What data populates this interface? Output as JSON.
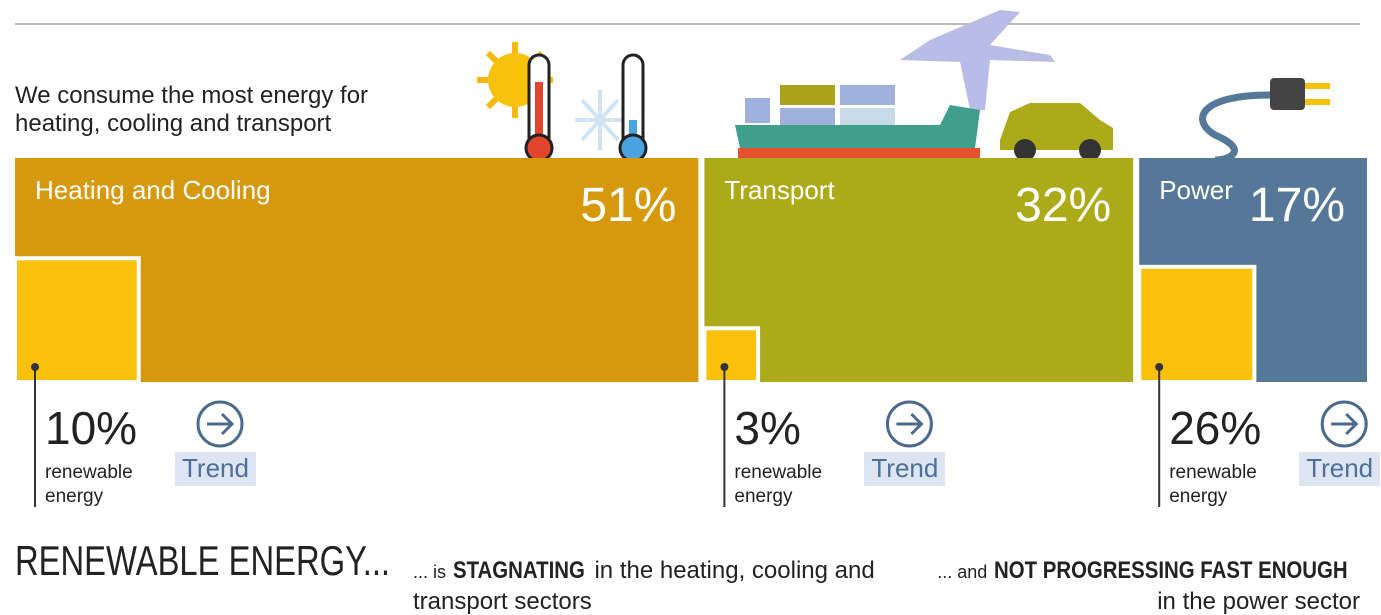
{
  "chart_data": {
    "type": "mekko",
    "title": "We consume the most energy for heating, cooling and transport",
    "categories": [
      "Heating and Cooling",
      "Transport",
      "Power"
    ],
    "values": [
      51,
      32,
      17
    ],
    "value_labels": [
      "51%",
      "32%",
      "17%"
    ],
    "colors": [
      "#d6990e",
      "#adaa1a",
      "#557898"
    ],
    "renewable": {
      "name": "renewable energy",
      "color": "#f9c10c",
      "values": [
        10,
        3,
        26
      ],
      "value_labels": [
        "10%",
        "3%",
        "26%"
      ]
    },
    "buttons": [
      "Trend",
      "Trend",
      "Trend"
    ],
    "footer": {
      "heading": "RENEWABLE ENERGY...",
      "notes": [
        {
          "lead": "... is",
          "bold": "STAGNATING",
          "rest": "in the heating, cooling and transport sectors"
        },
        {
          "lead": "... and",
          "bold": "NOT PROGRESSING FAST ENOUGH",
          "rest": "in the power sector"
        }
      ]
    }
  }
}
